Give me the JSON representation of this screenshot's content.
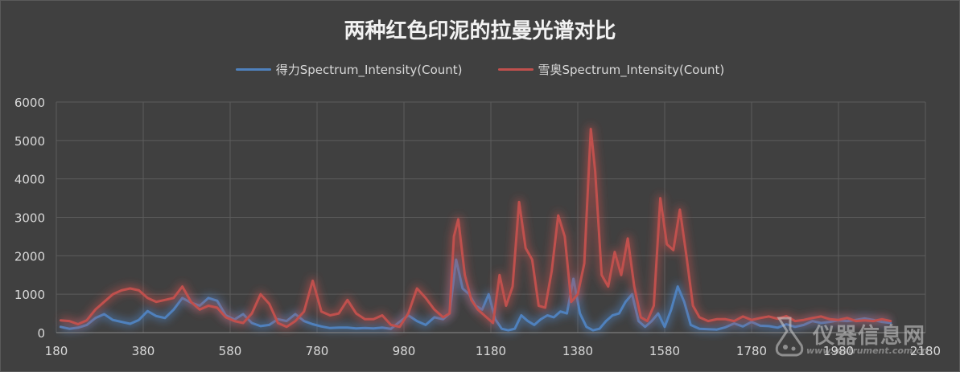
{
  "chart_data": {
    "type": "line",
    "title": "两种红色印泥的拉曼光谱对比",
    "xlabel": "",
    "ylabel": "",
    "xlim": [
      180,
      2180
    ],
    "ylim": [
      0,
      6000
    ],
    "x_ticks": [
      180,
      380,
      580,
      780,
      980,
      1180,
      1380,
      1580,
      1780,
      1980,
      2180
    ],
    "y_ticks": [
      0,
      1000,
      2000,
      3000,
      4000,
      5000,
      6000
    ],
    "grid": true,
    "legend_position": "top",
    "series": [
      {
        "name": "得力Spectrum_Intensity(Count)",
        "color": "#4f81bd",
        "points": [
          [
            190,
            150
          ],
          [
            210,
            100
          ],
          [
            230,
            130
          ],
          [
            250,
            200
          ],
          [
            270,
            380
          ],
          [
            290,
            480
          ],
          [
            310,
            330
          ],
          [
            330,
            280
          ],
          [
            350,
            230
          ],
          [
            370,
            330
          ],
          [
            390,
            560
          ],
          [
            410,
            430
          ],
          [
            430,
            380
          ],
          [
            450,
            600
          ],
          [
            470,
            900
          ],
          [
            490,
            780
          ],
          [
            510,
            700
          ],
          [
            530,
            900
          ],
          [
            550,
            830
          ],
          [
            570,
            450
          ],
          [
            590,
            340
          ],
          [
            610,
            480
          ],
          [
            630,
            250
          ],
          [
            650,
            170
          ],
          [
            670,
            200
          ],
          [
            690,
            350
          ],
          [
            710,
            300
          ],
          [
            730,
            480
          ],
          [
            750,
            300
          ],
          [
            770,
            220
          ],
          [
            790,
            160
          ],
          [
            810,
            120
          ],
          [
            830,
            130
          ],
          [
            850,
            130
          ],
          [
            870,
            110
          ],
          [
            890,
            120
          ],
          [
            910,
            110
          ],
          [
            930,
            130
          ],
          [
            950,
            100
          ],
          [
            970,
            280
          ],
          [
            990,
            450
          ],
          [
            1010,
            300
          ],
          [
            1030,
            200
          ],
          [
            1050,
            400
          ],
          [
            1070,
            350
          ],
          [
            1085,
            500
          ],
          [
            1100,
            1900
          ],
          [
            1115,
            1150
          ],
          [
            1130,
            1000
          ],
          [
            1145,
            700
          ],
          [
            1160,
            600
          ],
          [
            1175,
            1000
          ],
          [
            1190,
            350
          ],
          [
            1205,
            100
          ],
          [
            1220,
            60
          ],
          [
            1235,
            100
          ],
          [
            1250,
            450
          ],
          [
            1265,
            300
          ],
          [
            1280,
            200
          ],
          [
            1295,
            350
          ],
          [
            1310,
            450
          ],
          [
            1325,
            400
          ],
          [
            1340,
            550
          ],
          [
            1355,
            500
          ],
          [
            1370,
            1400
          ],
          [
            1385,
            500
          ],
          [
            1400,
            150
          ],
          [
            1415,
            60
          ],
          [
            1430,
            100
          ],
          [
            1445,
            300
          ],
          [
            1460,
            450
          ],
          [
            1475,
            500
          ],
          [
            1490,
            800
          ],
          [
            1505,
            1000
          ],
          [
            1520,
            300
          ],
          [
            1535,
            150
          ],
          [
            1550,
            300
          ],
          [
            1565,
            500
          ],
          [
            1580,
            150
          ],
          [
            1595,
            600
          ],
          [
            1610,
            1200
          ],
          [
            1625,
            800
          ],
          [
            1640,
            200
          ],
          [
            1660,
            100
          ],
          [
            1680,
            90
          ],
          [
            1700,
            80
          ],
          [
            1720,
            140
          ],
          [
            1740,
            240
          ],
          [
            1760,
            160
          ],
          [
            1780,
            280
          ],
          [
            1800,
            180
          ],
          [
            1820,
            170
          ],
          [
            1840,
            130
          ],
          [
            1860,
            220
          ],
          [
            1880,
            150
          ],
          [
            1900,
            200
          ],
          [
            1920,
            300
          ],
          [
            1940,
            250
          ],
          [
            1960,
            280
          ],
          [
            1980,
            320
          ],
          [
            2000,
            300
          ],
          [
            2020,
            330
          ],
          [
            2040,
            370
          ],
          [
            2060,
            330
          ],
          [
            2080,
            280
          ],
          [
            2100,
            250
          ]
        ]
      },
      {
        "name": "雪奥Spectrum_Intensity(Count)",
        "color": "#c0504d",
        "points": [
          [
            190,
            320
          ],
          [
            210,
            300
          ],
          [
            230,
            220
          ],
          [
            250,
            320
          ],
          [
            270,
            600
          ],
          [
            290,
            800
          ],
          [
            310,
            1000
          ],
          [
            330,
            1100
          ],
          [
            350,
            1150
          ],
          [
            370,
            1100
          ],
          [
            390,
            900
          ],
          [
            410,
            800
          ],
          [
            430,
            850
          ],
          [
            450,
            900
          ],
          [
            470,
            1200
          ],
          [
            490,
            800
          ],
          [
            510,
            600
          ],
          [
            530,
            700
          ],
          [
            550,
            650
          ],
          [
            570,
            400
          ],
          [
            590,
            300
          ],
          [
            610,
            250
          ],
          [
            630,
            500
          ],
          [
            650,
            1000
          ],
          [
            670,
            750
          ],
          [
            690,
            250
          ],
          [
            710,
            150
          ],
          [
            730,
            300
          ],
          [
            750,
            550
          ],
          [
            770,
            1350
          ],
          [
            790,
            550
          ],
          [
            810,
            450
          ],
          [
            830,
            500
          ],
          [
            850,
            850
          ],
          [
            870,
            500
          ],
          [
            890,
            350
          ],
          [
            910,
            350
          ],
          [
            930,
            450
          ],
          [
            950,
            200
          ],
          [
            970,
            150
          ],
          [
            990,
            500
          ],
          [
            1010,
            1150
          ],
          [
            1030,
            900
          ],
          [
            1050,
            600
          ],
          [
            1070,
            400
          ],
          [
            1085,
            500
          ],
          [
            1095,
            2500
          ],
          [
            1105,
            2950
          ],
          [
            1120,
            1500
          ],
          [
            1135,
            850
          ],
          [
            1150,
            600
          ],
          [
            1170,
            400
          ],
          [
            1185,
            250
          ],
          [
            1200,
            1500
          ],
          [
            1215,
            700
          ],
          [
            1230,
            1200
          ],
          [
            1245,
            3400
          ],
          [
            1260,
            2200
          ],
          [
            1275,
            1900
          ],
          [
            1290,
            700
          ],
          [
            1305,
            650
          ],
          [
            1320,
            1600
          ],
          [
            1335,
            3050
          ],
          [
            1350,
            2500
          ],
          [
            1365,
            800
          ],
          [
            1380,
            1000
          ],
          [
            1395,
            1800
          ],
          [
            1410,
            5300
          ],
          [
            1420,
            4200
          ],
          [
            1435,
            1500
          ],
          [
            1450,
            1200
          ],
          [
            1465,
            2100
          ],
          [
            1480,
            1500
          ],
          [
            1495,
            2450
          ],
          [
            1510,
            1200
          ],
          [
            1525,
            400
          ],
          [
            1540,
            300
          ],
          [
            1555,
            700
          ],
          [
            1570,
            3500
          ],
          [
            1585,
            2300
          ],
          [
            1600,
            2150
          ],
          [
            1615,
            3200
          ],
          [
            1630,
            2000
          ],
          [
            1645,
            700
          ],
          [
            1660,
            400
          ],
          [
            1680,
            300
          ],
          [
            1700,
            350
          ],
          [
            1720,
            350
          ],
          [
            1740,
            300
          ],
          [
            1760,
            420
          ],
          [
            1780,
            330
          ],
          [
            1800,
            380
          ],
          [
            1820,
            420
          ],
          [
            1840,
            360
          ],
          [
            1860,
            430
          ],
          [
            1880,
            300
          ],
          [
            1900,
            330
          ],
          [
            1920,
            380
          ],
          [
            1940,
            420
          ],
          [
            1960,
            350
          ],
          [
            1980,
            330
          ],
          [
            2000,
            380
          ],
          [
            2020,
            300
          ],
          [
            2040,
            320
          ],
          [
            2060,
            300
          ],
          [
            2080,
            350
          ],
          [
            2100,
            300
          ]
        ]
      }
    ]
  },
  "watermark": {
    "text": "仪器信息网",
    "url": "www.instrument.com.cn"
  }
}
